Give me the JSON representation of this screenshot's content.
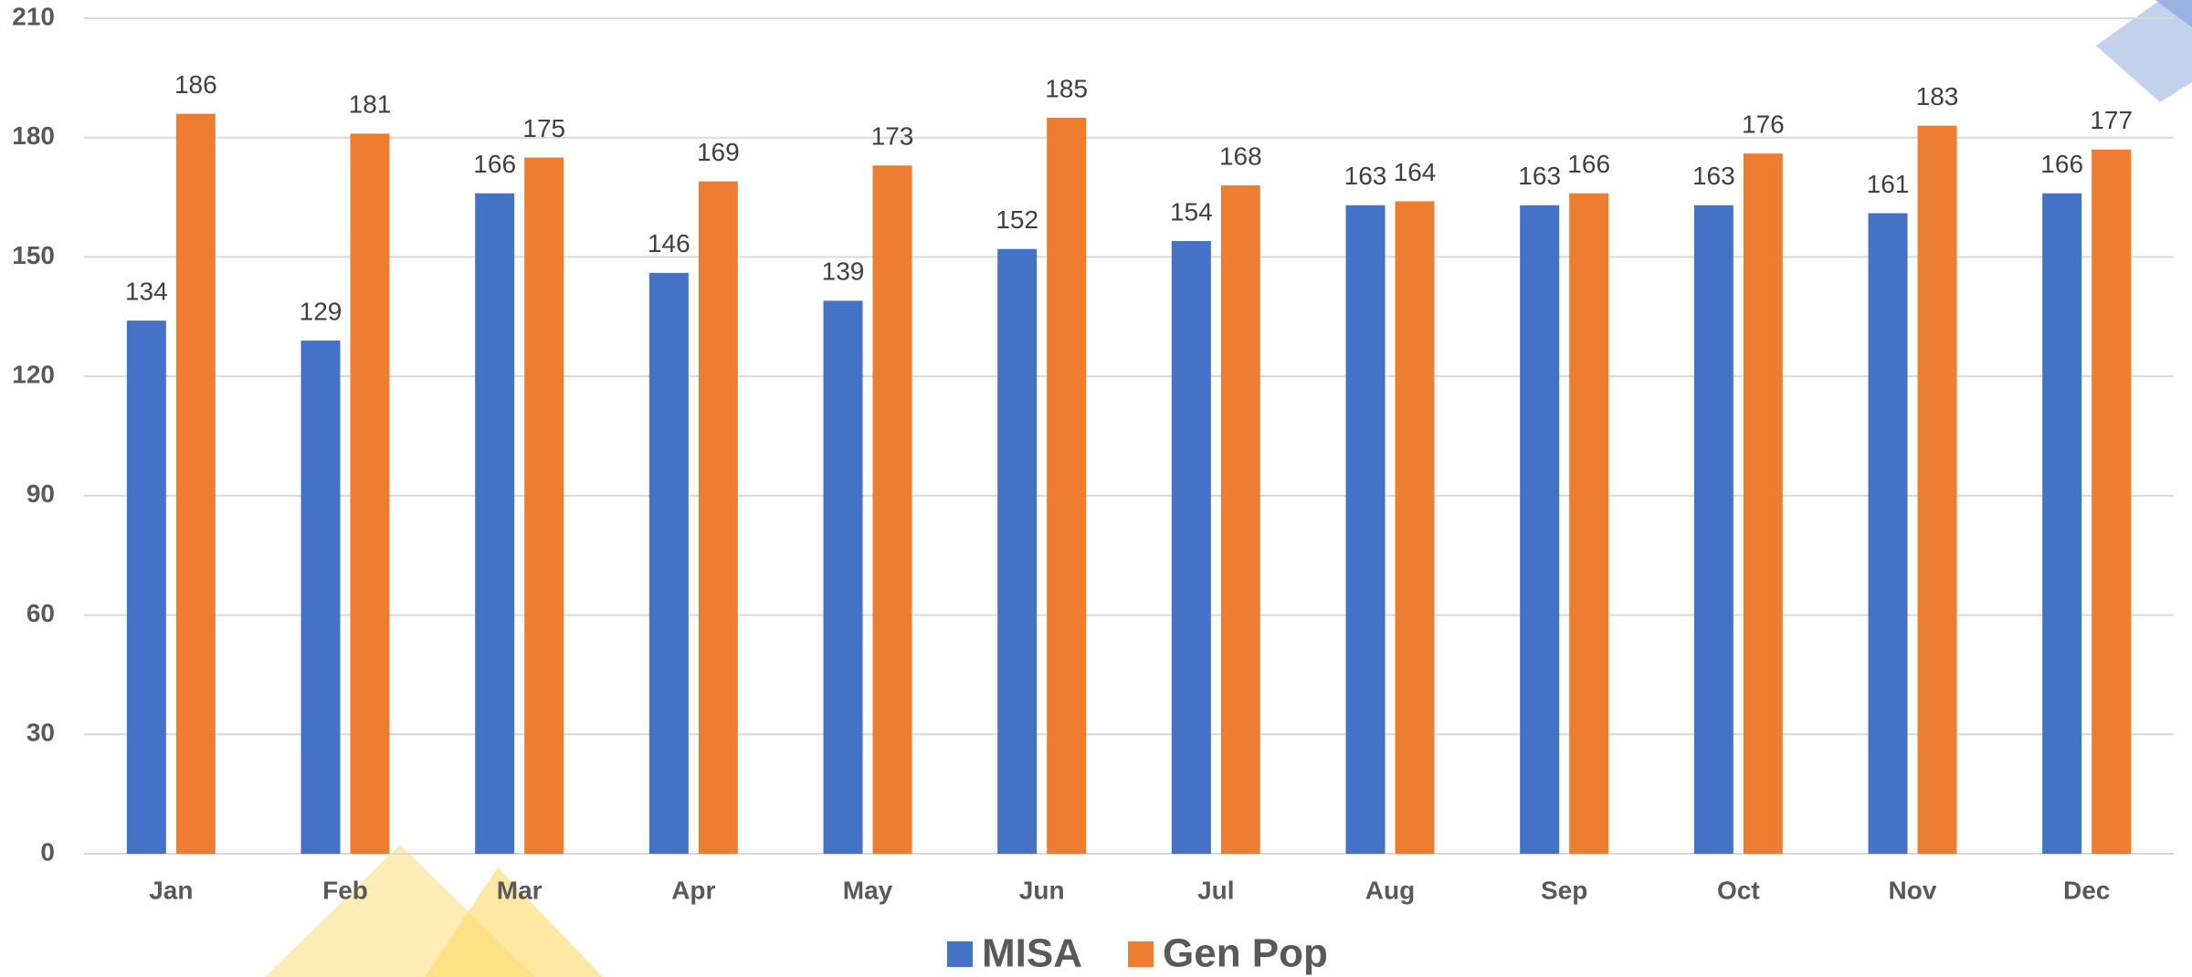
{
  "chart_data": {
    "type": "bar",
    "categories": [
      "Jan",
      "Feb",
      "Mar",
      "Apr",
      "May",
      "Jun",
      "Jul",
      "Aug",
      "Sep",
      "Oct",
      "Nov",
      "Dec"
    ],
    "series": [
      {
        "name": "MISA",
        "color": "#4472c4",
        "values": [
          134,
          129,
          166,
          146,
          139,
          152,
          154,
          163,
          163,
          163,
          161,
          166
        ]
      },
      {
        "name": "Gen Pop",
        "color": "#ed7d31",
        "values": [
          186,
          181,
          175,
          169,
          173,
          185,
          168,
          164,
          166,
          176,
          183,
          177
        ]
      }
    ],
    "ylim": [
      0,
      210
    ],
    "yticks": [
      0,
      30,
      60,
      90,
      120,
      150,
      180,
      210
    ],
    "grid": true,
    "legend": "bottom"
  }
}
